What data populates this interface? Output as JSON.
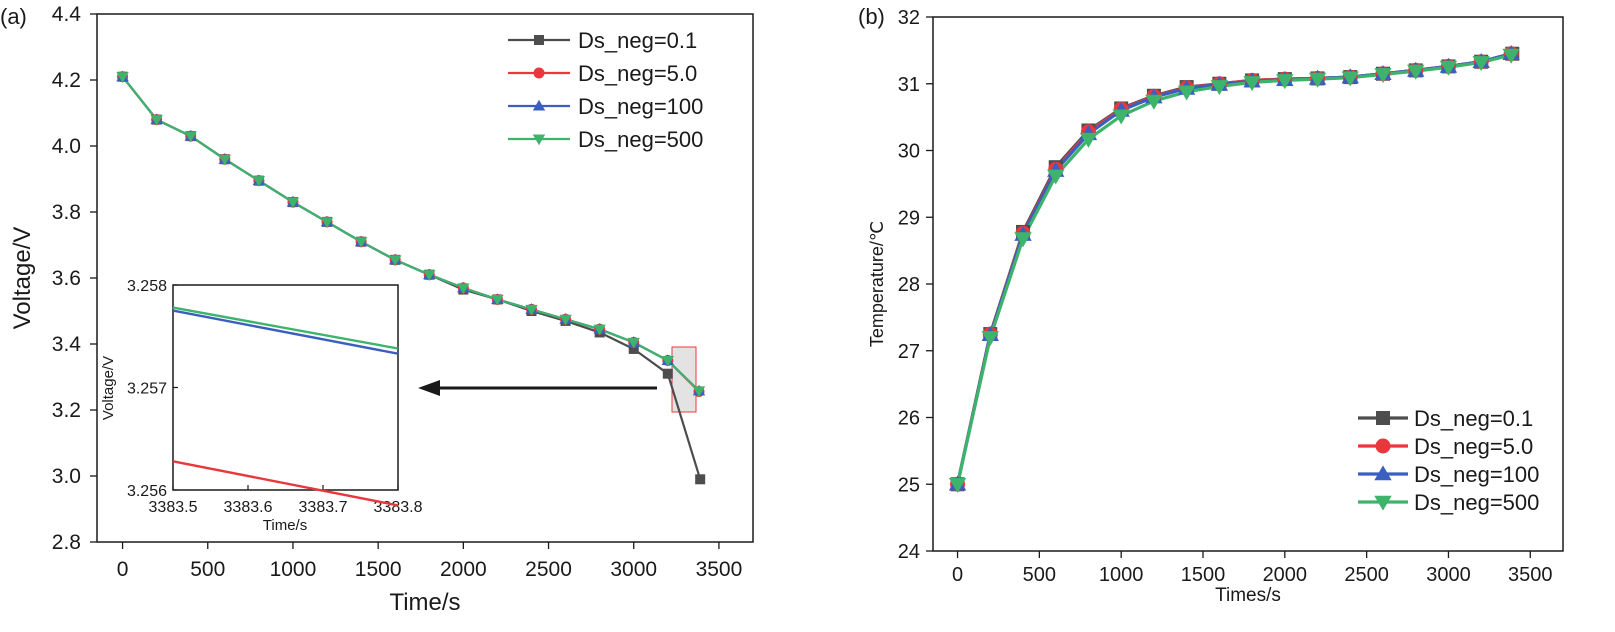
{
  "chart_data": [
    {
      "panel_label": "(a)",
      "type": "line",
      "xlabel": "Time/s",
      "ylabel": "Voltage/V",
      "xlim": [
        -150,
        3700
      ],
      "ylim": [
        2.8,
        4.4
      ],
      "xticks": [
        0,
        500,
        1000,
        1500,
        2000,
        2500,
        3000,
        3500
      ],
      "yticks": [
        2.8,
        3.0,
        3.2,
        3.4,
        3.6,
        3.8,
        4.0,
        4.2,
        4.4
      ],
      "ytick_labels": [
        "2.8",
        "3.0",
        "3.2",
        "3.4",
        "3.6",
        "3.8",
        "4.0",
        "4.2",
        "4.4"
      ],
      "legend_position": "top-right",
      "series": [
        {
          "name": "Ds_neg=0.1",
          "color": "#4d4d4d",
          "marker": "square",
          "x": [
            0,
            200,
            400,
            600,
            800,
            1000,
            1200,
            1400,
            1600,
            1800,
            2000,
            2200,
            2400,
            2600,
            2800,
            3000,
            3200,
            3390
          ],
          "y": [
            4.21,
            4.08,
            4.03,
            3.96,
            3.895,
            3.83,
            3.77,
            3.71,
            3.655,
            3.61,
            3.565,
            3.535,
            3.5,
            3.47,
            3.435,
            3.385,
            3.31,
            2.99
          ]
        },
        {
          "name": "Ds_neg=5.0",
          "color": "#e8383d",
          "marker": "circle",
          "x": [
            0,
            200,
            400,
            600,
            800,
            1000,
            1200,
            1400,
            1600,
            1800,
            2000,
            2200,
            2400,
            2600,
            2800,
            3000,
            3200,
            3383
          ],
          "y": [
            4.21,
            4.08,
            4.03,
            3.96,
            3.895,
            3.83,
            3.77,
            3.71,
            3.655,
            3.61,
            3.57,
            3.535,
            3.505,
            3.475,
            3.445,
            3.405,
            3.35,
            3.256
          ]
        },
        {
          "name": "Ds_neg=100",
          "color": "#3b5fbf",
          "marker": "triangle-up",
          "x": [
            0,
            200,
            400,
            600,
            800,
            1000,
            1200,
            1400,
            1600,
            1800,
            2000,
            2200,
            2400,
            2600,
            2800,
            3000,
            3200,
            3383
          ],
          "y": [
            4.21,
            4.08,
            4.03,
            3.96,
            3.895,
            3.83,
            3.77,
            3.71,
            3.655,
            3.61,
            3.57,
            3.535,
            3.505,
            3.475,
            3.445,
            3.405,
            3.35,
            3.2578
          ]
        },
        {
          "name": "Ds_neg=500",
          "color": "#3db36b",
          "marker": "triangle-down",
          "x": [
            0,
            200,
            400,
            600,
            800,
            1000,
            1200,
            1400,
            1600,
            1800,
            2000,
            2200,
            2400,
            2600,
            2800,
            3000,
            3200,
            3383
          ],
          "y": [
            4.21,
            4.08,
            4.03,
            3.96,
            3.895,
            3.83,
            3.77,
            3.71,
            3.655,
            3.61,
            3.57,
            3.535,
            3.505,
            3.475,
            3.445,
            3.405,
            3.35,
            3.2578
          ]
        }
      ],
      "inset": {
        "xlabel": "Time/s",
        "ylabel": "Voltage/V",
        "xlim": [
          3383.5,
          3383.8
        ],
        "ylim": [
          3.256,
          3.258
        ],
        "xticks": [
          3383.5,
          3383.6,
          3383.7,
          3383.8
        ],
        "xtick_labels": [
          "3383.5",
          "3383.6",
          "3383.7",
          "3383.8"
        ],
        "yticks": [
          3.256,
          3.257,
          3.258
        ],
        "ytick_labels": [
          "3.256",
          "3.257",
          "3.258"
        ],
        "series": [
          {
            "name": "Ds_neg=5.0",
            "color": "#e8383d",
            "x": [
              3383.5,
              3383.8
            ],
            "y": [
              3.25628,
              3.25585
            ]
          },
          {
            "name": "Ds_neg=100",
            "color": "#3b5fbf",
            "x": [
              3383.5,
              3383.8
            ],
            "y": [
              3.25775,
              3.25733
            ]
          },
          {
            "name": "Ds_neg=500",
            "color": "#3db36b",
            "x": [
              3383.5,
              3383.8
            ],
            "y": [
              3.25778,
              3.25738
            ]
          }
        ]
      }
    },
    {
      "panel_label": "(b)",
      "type": "line",
      "xlabel": "Times/s",
      "ylabel": "Temperature/℃",
      "xlim": [
        -150,
        3700
      ],
      "ylim": [
        24,
        32
      ],
      "xticks": [
        0,
        500,
        1000,
        1500,
        2000,
        2500,
        3000,
        3500
      ],
      "yticks": [
        24,
        25,
        26,
        27,
        28,
        29,
        30,
        31,
        32
      ],
      "ytick_labels": [
        "24",
        "25",
        "26",
        "27",
        "28",
        "29",
        "30",
        "31",
        "32"
      ],
      "legend_position": "bottom-right",
      "series": [
        {
          "name": "Ds_neg=0.1",
          "color": "#4d4d4d",
          "marker": "square",
          "x": [
            0,
            200,
            400,
            600,
            800,
            1000,
            1200,
            1400,
            1600,
            1800,
            2000,
            2200,
            2400,
            2600,
            2800,
            3000,
            3200,
            3390
          ],
          "y": [
            25.0,
            27.25,
            28.78,
            29.75,
            30.3,
            30.63,
            30.82,
            30.95,
            31.0,
            31.05,
            31.07,
            31.08,
            31.1,
            31.15,
            31.2,
            31.26,
            31.33,
            31.45
          ]
        },
        {
          "name": "Ds_neg=5.0",
          "color": "#e8383d",
          "marker": "circle",
          "x": [
            0,
            200,
            400,
            600,
            800,
            1000,
            1200,
            1400,
            1600,
            1800,
            2000,
            2200,
            2400,
            2600,
            2800,
            3000,
            3200,
            3383
          ],
          "y": [
            25.0,
            27.25,
            28.76,
            29.72,
            30.28,
            30.62,
            30.81,
            30.94,
            31.0,
            31.05,
            31.07,
            31.08,
            31.1,
            31.15,
            31.2,
            31.26,
            31.33,
            31.45
          ]
        },
        {
          "name": "Ds_neg=100",
          "color": "#3b5fbf",
          "marker": "triangle-up",
          "x": [
            0,
            200,
            400,
            600,
            800,
            1000,
            1200,
            1400,
            1600,
            1800,
            2000,
            2200,
            2400,
            2600,
            2800,
            3000,
            3200,
            3383
          ],
          "y": [
            25.0,
            27.24,
            28.74,
            29.7,
            30.25,
            30.6,
            30.8,
            30.93,
            30.99,
            31.04,
            31.06,
            31.08,
            31.1,
            31.15,
            31.2,
            31.26,
            31.33,
            31.45
          ]
        },
        {
          "name": "Ds_neg=500",
          "color": "#3db36b",
          "marker": "triangle-down",
          "x": [
            0,
            200,
            400,
            600,
            800,
            1000,
            1200,
            1400,
            1600,
            1800,
            2000,
            2200,
            2400,
            2600,
            2800,
            3000,
            3200,
            3383
          ],
          "y": [
            25.0,
            27.2,
            28.68,
            29.62,
            30.17,
            30.52,
            30.74,
            30.88,
            30.96,
            31.02,
            31.05,
            31.07,
            31.09,
            31.14,
            31.19,
            31.25,
            31.32,
            31.43
          ]
        }
      ]
    }
  ]
}
